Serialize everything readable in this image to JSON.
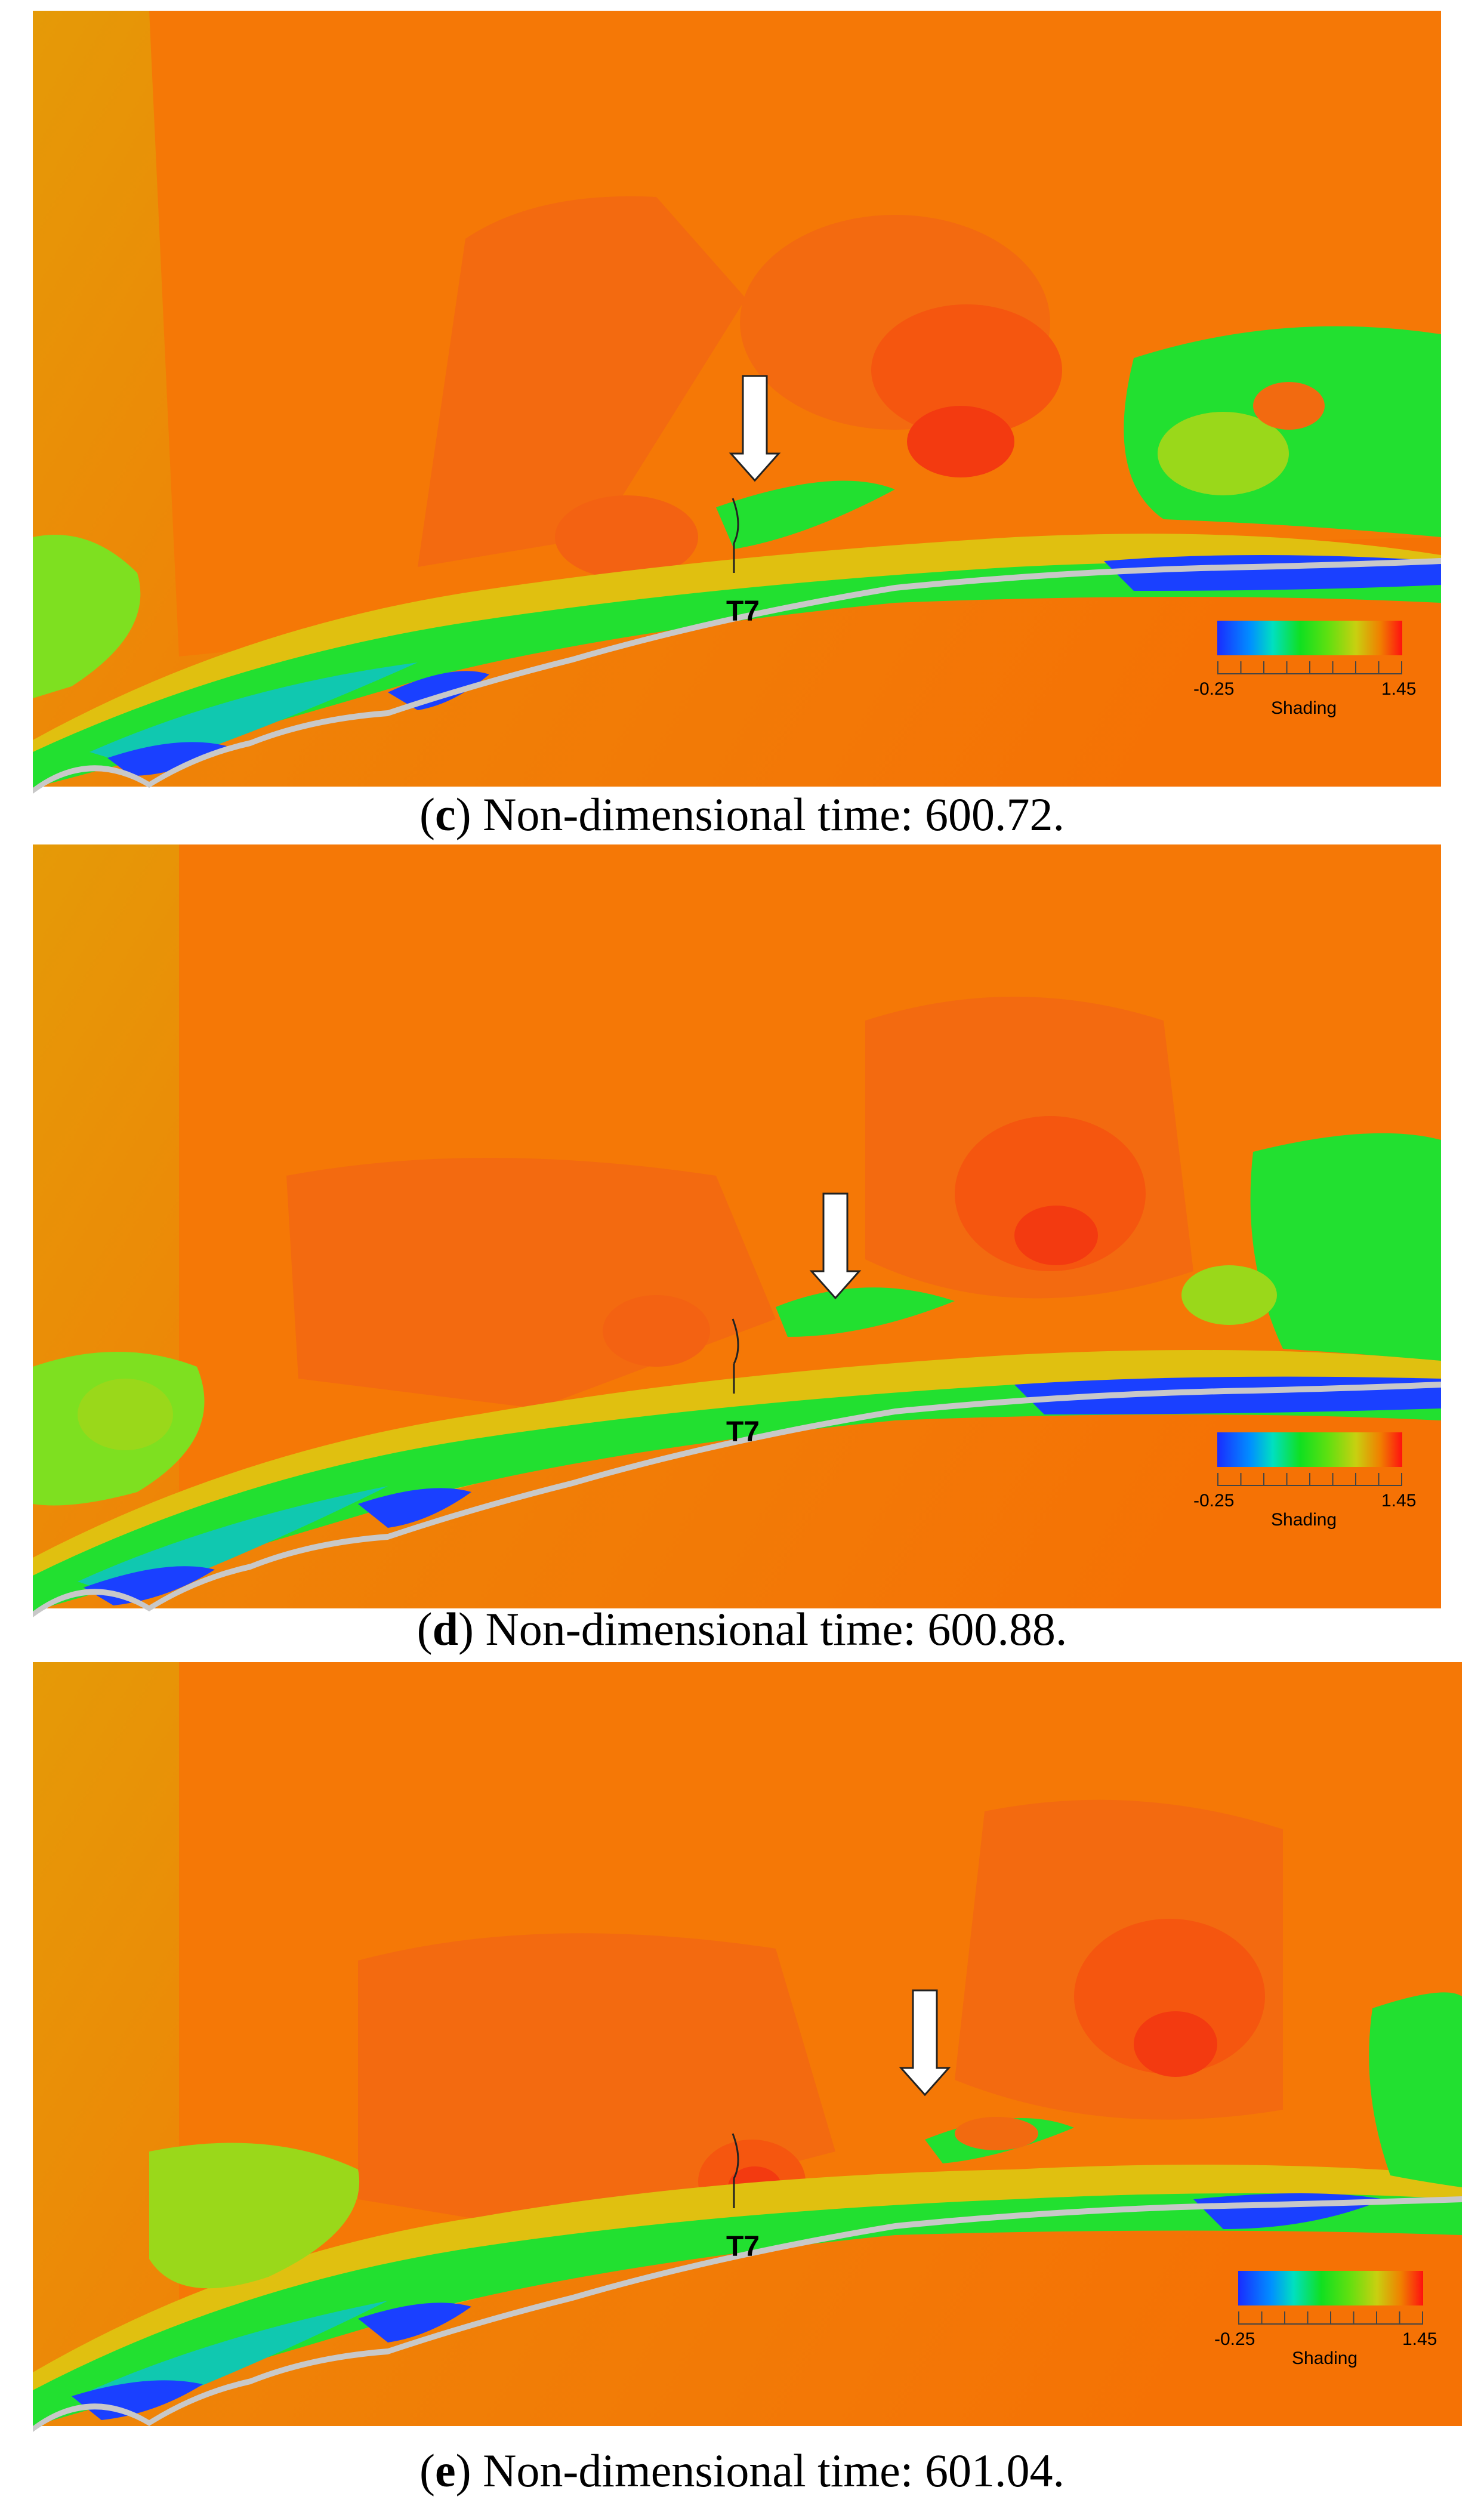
{
  "panels": [
    {
      "letter": "c",
      "caption_open": "(",
      "caption_close": ") Non-dimensional time: 600.72.",
      "turbine_label": "T7"
    },
    {
      "letter": "d",
      "caption_open": "(",
      "caption_close": ") Non-dimensional time: 600.88.",
      "turbine_label": "T7"
    },
    {
      "letter": "e",
      "caption_open": "(",
      "caption_close": ") Non-dimensional time: 601.04.",
      "turbine_label": "T7"
    }
  ],
  "colorbar": {
    "min_label": "-0.25",
    "max_label": "1.45",
    "title": "Shading",
    "min": -0.25,
    "max": 1.45,
    "colors": [
      "#1a2cff",
      "#0090ff",
      "#00e0c0",
      "#10e020",
      "#60e010",
      "#c8d010",
      "#f08000",
      "#ff1010"
    ]
  },
  "field_colors": {
    "background": "#ef8a05",
    "upper_left": "#e89a08",
    "core": "#f26a10",
    "hot": "#ff3a10",
    "wake": "#22e030",
    "wake_light": "#7ee020",
    "low": "#1a40ff",
    "terrain": "#c8c8c8"
  }
}
